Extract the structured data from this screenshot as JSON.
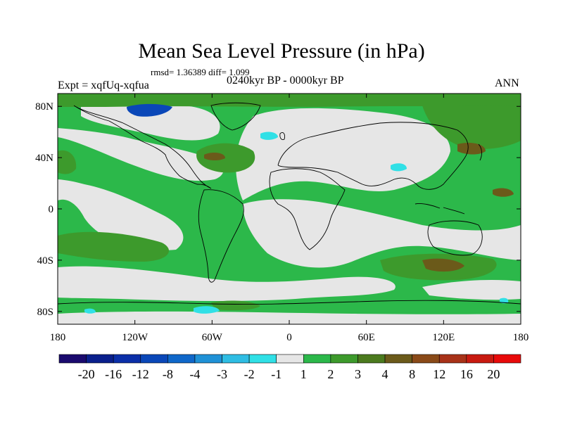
{
  "header": {
    "title": "Mean Sea Level Pressure (in hPa)",
    "stats": "rmsd= 1.36389 diff= 1.099",
    "expt": "Expt = xqfUq-xqfua",
    "period": "0240kyr BP - 0000kyr BP",
    "season": "ANN"
  },
  "axes": {
    "y_ticks": [
      "80N",
      "40N",
      "0",
      "40S",
      "80S"
    ],
    "y_values": [
      80,
      40,
      0,
      -40,
      -80
    ],
    "x_ticks": [
      "180",
      "120W",
      "60W",
      "0",
      "60E",
      "120E",
      "180"
    ],
    "x_values": [
      -180,
      -120,
      -60,
      0,
      60,
      120,
      180
    ],
    "lon_range": [
      -180,
      180
    ],
    "lat_range": [
      -90,
      90
    ]
  },
  "colorbar": {
    "labels": [
      "-20",
      "-16",
      "-12",
      "-8",
      "-4",
      "-3",
      "-2",
      "-1",
      "1",
      "2",
      "3",
      "4",
      "8",
      "12",
      "16",
      "20"
    ],
    "colors": [
      "#1a0a6e",
      "#0a1f8c",
      "#0b2fa8",
      "#0a47b8",
      "#0f67c9",
      "#1f91d6",
      "#2fbde3",
      "#30e0e6",
      "#e6e6e6",
      "#2cb84a",
      "#3d9a2c",
      "#4b7a1e",
      "#6b5a1a",
      "#8a4a18",
      "#a83218",
      "#c81a10",
      "#e80a0a"
    ]
  },
  "map_colors": {
    "ocean_bg": "#2cb84a",
    "neutral": "#e6e6e6",
    "green_dark": "#3d9a2c",
    "olive": "#4b7a1e",
    "brown": "#6b5a1a",
    "cyan": "#30e0e6",
    "blue": "#0a47b8",
    "coast": "#000000"
  }
}
